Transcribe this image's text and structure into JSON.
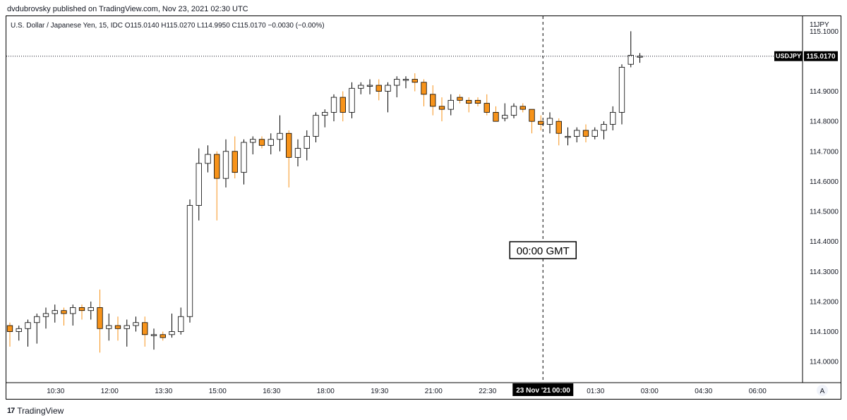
{
  "header": {
    "published_by": "dvdubrovsky published on TradingView.com, Nov 23, 2021 02:30 UTC"
  },
  "legend": {
    "text": "U.S. Dollar / Japanese Yen, 15, IDC  O115.0140  H115.0270  L114.9950  C115.0170  −0.0030 (−0.00%)"
  },
  "footer": {
    "logo_mark": "17",
    "logo_text": "TradingView"
  },
  "price_axis": {
    "currency": "JPY",
    "currency_prefix": "11",
    "badge_symbol": "USDJPY",
    "badge_price": "115.0170",
    "badge_value": 115.017
  },
  "time_axis": {
    "highlight_date": "23 Nov '21",
    "highlight_time": "00:00",
    "auto_scale_label": "A"
  },
  "annotation": {
    "label": "00:00 GMT",
    "time": "00:00"
  },
  "colors": {
    "up_body": "#ffffff",
    "down_body": "#f7931a",
    "wick": "#000000",
    "down_wick": "#f7931a",
    "axis_text": "#131722",
    "badge_bg": "#000000"
  },
  "chart_data": {
    "type": "candlestick",
    "title": "U.S. Dollar / Japanese Yen, 15, IDC",
    "timeframe_minutes": 15,
    "ylim": [
      113.93,
      115.15
    ],
    "y_ticks": [
      114.0,
      114.1,
      114.2,
      114.3,
      114.4,
      114.5,
      114.6,
      114.7,
      114.8,
      114.9,
      115.0,
      115.1
    ],
    "y_tick_labels": [
      "114.0000",
      "114.1000",
      "114.2000",
      "114.3000",
      "114.4000",
      "114.5000",
      "114.6000",
      "114.7000",
      "114.8000",
      "114.9000",
      "",
      "115.1000"
    ],
    "x_ticks": [
      "10:30",
      "12:00",
      "13:30",
      "15:00",
      "16:30",
      "18:00",
      "19:30",
      "21:00",
      "22:30",
      "00:00",
      "01:30",
      "03:00",
      "04:30",
      "06:00"
    ],
    "x_tick_index": [
      5,
      11,
      17,
      23,
      29,
      35,
      41,
      47,
      53,
      59,
      65,
      71,
      77,
      83
    ],
    "candles": [
      {
        "o": 114.12,
        "h": 114.13,
        "l": 114.05,
        "c": 114.1
      },
      {
        "o": 114.1,
        "h": 114.12,
        "l": 114.07,
        "c": 114.11
      },
      {
        "o": 114.11,
        "h": 114.14,
        "l": 114.05,
        "c": 114.13
      },
      {
        "o": 114.13,
        "h": 114.16,
        "l": 114.06,
        "c": 114.15
      },
      {
        "o": 114.15,
        "h": 114.18,
        "l": 114.11,
        "c": 114.16
      },
      {
        "o": 114.16,
        "h": 114.19,
        "l": 114.13,
        "c": 114.17
      },
      {
        "o": 114.17,
        "h": 114.18,
        "l": 114.12,
        "c": 114.16
      },
      {
        "o": 114.16,
        "h": 114.19,
        "l": 114.12,
        "c": 114.18
      },
      {
        "o": 114.18,
        "h": 114.19,
        "l": 114.14,
        "c": 114.17
      },
      {
        "o": 114.17,
        "h": 114.2,
        "l": 114.14,
        "c": 114.18
      },
      {
        "o": 114.18,
        "h": 114.24,
        "l": 114.03,
        "c": 114.11
      },
      {
        "o": 114.11,
        "h": 114.16,
        "l": 114.07,
        "c": 114.12
      },
      {
        "o": 114.12,
        "h": 114.15,
        "l": 114.07,
        "c": 114.11
      },
      {
        "o": 114.11,
        "h": 114.14,
        "l": 114.05,
        "c": 114.12
      },
      {
        "o": 114.12,
        "h": 114.15,
        "l": 114.1,
        "c": 114.13
      },
      {
        "o": 114.13,
        "h": 114.15,
        "l": 114.05,
        "c": 114.09
      },
      {
        "o": 114.09,
        "h": 114.11,
        "l": 114.04,
        "c": 114.09
      },
      {
        "o": 114.09,
        "h": 114.1,
        "l": 114.07,
        "c": 114.08
      },
      {
        "o": 114.09,
        "h": 114.16,
        "l": 114.08,
        "c": 114.1
      },
      {
        "o": 114.1,
        "h": 114.18,
        "l": 114.09,
        "c": 114.15
      },
      {
        "o": 114.15,
        "h": 114.54,
        "l": 114.13,
        "c": 114.52
      },
      {
        "o": 114.52,
        "h": 114.71,
        "l": 114.47,
        "c": 114.66
      },
      {
        "o": 114.66,
        "h": 114.72,
        "l": 114.63,
        "c": 114.69
      },
      {
        "o": 114.69,
        "h": 114.7,
        "l": 114.47,
        "c": 114.61
      },
      {
        "o": 114.61,
        "h": 114.74,
        "l": 114.58,
        "c": 114.7
      },
      {
        "o": 114.7,
        "h": 114.75,
        "l": 114.61,
        "c": 114.63
      },
      {
        "o": 114.63,
        "h": 114.74,
        "l": 114.59,
        "c": 114.73
      },
      {
        "o": 114.73,
        "h": 114.75,
        "l": 114.69,
        "c": 114.74
      },
      {
        "o": 114.74,
        "h": 114.75,
        "l": 114.71,
        "c": 114.72
      },
      {
        "o": 114.72,
        "h": 114.76,
        "l": 114.69,
        "c": 114.74
      },
      {
        "o": 114.74,
        "h": 114.82,
        "l": 114.7,
        "c": 114.76
      },
      {
        "o": 114.76,
        "h": 114.77,
        "l": 114.58,
        "c": 114.68
      },
      {
        "o": 114.68,
        "h": 114.74,
        "l": 114.65,
        "c": 114.71
      },
      {
        "o": 114.71,
        "h": 114.77,
        "l": 114.67,
        "c": 114.75
      },
      {
        "o": 114.75,
        "h": 114.83,
        "l": 114.73,
        "c": 114.82
      },
      {
        "o": 114.82,
        "h": 114.84,
        "l": 114.78,
        "c": 114.83
      },
      {
        "o": 114.83,
        "h": 114.89,
        "l": 114.8,
        "c": 114.88
      },
      {
        "o": 114.88,
        "h": 114.9,
        "l": 114.8,
        "c": 114.83
      },
      {
        "o": 114.83,
        "h": 114.93,
        "l": 114.81,
        "c": 114.91
      },
      {
        "o": 114.91,
        "h": 114.93,
        "l": 114.89,
        "c": 114.92
      },
      {
        "o": 114.92,
        "h": 114.94,
        "l": 114.89,
        "c": 114.92
      },
      {
        "o": 114.92,
        "h": 114.94,
        "l": 114.87,
        "c": 114.9
      },
      {
        "o": 114.9,
        "h": 114.93,
        "l": 114.83,
        "c": 114.92
      },
      {
        "o": 114.92,
        "h": 114.95,
        "l": 114.88,
        "c": 114.94
      },
      {
        "o": 114.94,
        "h": 114.95,
        "l": 114.91,
        "c": 114.94
      },
      {
        "o": 114.94,
        "h": 114.96,
        "l": 114.9,
        "c": 114.93
      },
      {
        "o": 114.93,
        "h": 114.94,
        "l": 114.85,
        "c": 114.89
      },
      {
        "o": 114.89,
        "h": 114.92,
        "l": 114.82,
        "c": 114.85
      },
      {
        "o": 114.85,
        "h": 114.88,
        "l": 114.8,
        "c": 114.84
      },
      {
        "o": 114.84,
        "h": 114.89,
        "l": 114.82,
        "c": 114.87
      },
      {
        "o": 114.88,
        "h": 114.89,
        "l": 114.86,
        "c": 114.87
      },
      {
        "o": 114.87,
        "h": 114.88,
        "l": 114.83,
        "c": 114.86
      },
      {
        "o": 114.87,
        "h": 114.88,
        "l": 114.85,
        "c": 114.86
      },
      {
        "o": 114.86,
        "h": 114.89,
        "l": 114.82,
        "c": 114.83
      },
      {
        "o": 114.83,
        "h": 114.85,
        "l": 114.8,
        "c": 114.8
      },
      {
        "o": 114.81,
        "h": 114.86,
        "l": 114.8,
        "c": 114.82
      },
      {
        "o": 114.82,
        "h": 114.86,
        "l": 114.81,
        "c": 114.85
      },
      {
        "o": 114.85,
        "h": 114.86,
        "l": 114.83,
        "c": 114.84
      },
      {
        "o": 114.84,
        "h": 114.84,
        "l": 114.76,
        "c": 114.8
      },
      {
        "o": 114.8,
        "h": 114.82,
        "l": 114.77,
        "c": 114.79
      },
      {
        "o": 114.79,
        "h": 114.83,
        "l": 114.76,
        "c": 114.81
      },
      {
        "o": 114.8,
        "h": 114.81,
        "l": 114.72,
        "c": 114.76
      },
      {
        "o": 114.75,
        "h": 114.78,
        "l": 114.72,
        "c": 114.75
      },
      {
        "o": 114.75,
        "h": 114.78,
        "l": 114.73,
        "c": 114.77
      },
      {
        "o": 114.77,
        "h": 114.79,
        "l": 114.73,
        "c": 114.75
      },
      {
        "o": 114.75,
        "h": 114.78,
        "l": 114.74,
        "c": 114.77
      },
      {
        "o": 114.77,
        "h": 114.8,
        "l": 114.74,
        "c": 114.79
      },
      {
        "o": 114.79,
        "h": 114.85,
        "l": 114.77,
        "c": 114.83
      },
      {
        "o": 114.83,
        "h": 114.99,
        "l": 114.79,
        "c": 114.98
      },
      {
        "o": 114.99,
        "h": 115.1,
        "l": 114.98,
        "c": 115.02
      },
      {
        "o": 115.014,
        "h": 115.027,
        "l": 114.995,
        "c": 115.017
      }
    ]
  }
}
